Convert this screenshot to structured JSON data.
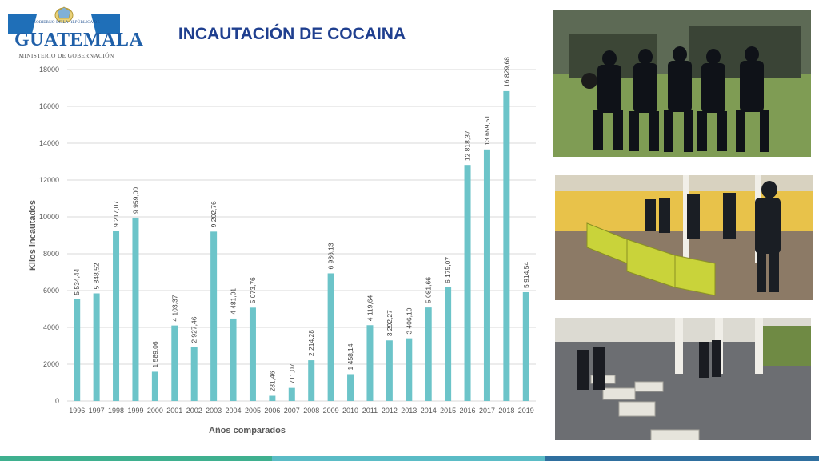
{
  "header": {
    "logo_small_text": "GOBIERNO DE LA REPÚBLICA DE",
    "logo_main_text": "GUATEMALA",
    "logo_sub_text": "MINISTERIO DE GOBERNACIÓN"
  },
  "chart_data": {
    "type": "bar",
    "title": "INCAUTACIÓN DE COCAINA",
    "xlabel": "Años comparados",
    "ylabel": "Kilos incautados",
    "ylim": [
      0,
      18000
    ],
    "yticks": [
      "0",
      "2000",
      "4000",
      "6000",
      "8000",
      "10000",
      "12000",
      "14000",
      "16000",
      "18000"
    ],
    "grid": true,
    "bar_color": "#6cc4c9",
    "categories": [
      "1996",
      "1997",
      "1998",
      "1999",
      "2000",
      "2001",
      "2002",
      "2003",
      "2004",
      "2005",
      "2006",
      "2007",
      "2008",
      "2009",
      "2010",
      "2011",
      "2012",
      "2013",
      "2014",
      "2015",
      "2016",
      "2017",
      "2018",
      "2019"
    ],
    "values": [
      5534.44,
      5848.52,
      9217.07,
      9959.0,
      1589.06,
      4103.37,
      2927.46,
      9202.76,
      4481.01,
      5073.76,
      281.46,
      711.07,
      2214.28,
      6936.13,
      1458.14,
      4119.64,
      3292.27,
      3406.1,
      5081.66,
      6175.07,
      12818.37,
      13659.51,
      16829.68,
      5914.54
    ],
    "data_labels": [
      "5 534,44",
      "5 848,52",
      "9 217,07",
      "9 959,00",
      "1 589,06",
      "4 103,37",
      "2 927,46",
      "9 202,76",
      "4 481,01",
      "5 073,76",
      "281,46",
      "711,07",
      "2 214,28",
      "6 936,13",
      "1 458,14",
      "4 119,64",
      "3 292,27",
      "3 406,10",
      "5 081,66",
      "6 175,07",
      "12 818,37",
      "13 659,51",
      "16 829,68",
      "5 914,54"
    ]
  },
  "photos": [
    {
      "name": "armed-police-squad-photo"
    },
    {
      "name": "seized-packages-hall-photo"
    },
    {
      "name": "seized-packages-floor-photo"
    }
  ],
  "colors": {
    "title": "#1f3f8f",
    "bars": "#6cc4c9",
    "stripe_green": "#3fb08f",
    "stripe_teal": "#5bbcc6",
    "stripe_blue": "#2f6f9f"
  }
}
